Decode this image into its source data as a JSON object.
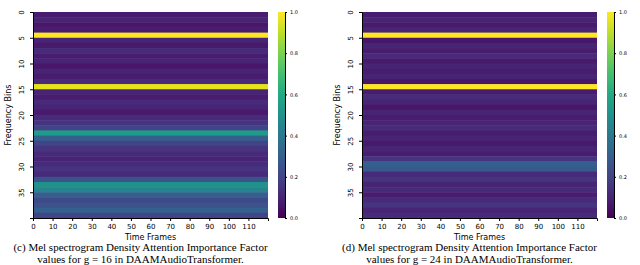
{
  "chart_data": [
    {
      "type": "heatmap",
      "xlabel": "Time Frames",
      "ylabel": "Frequency Bins",
      "caption": [
        "(c) Mel spectrogram Density Attention Importance Factor",
        "values for g = 16 in DAAMAudioTransformer."
      ],
      "xlim": [
        0,
        120
      ],
      "xticks": [
        0,
        10,
        20,
        30,
        40,
        50,
        60,
        70,
        80,
        90,
        100,
        110
      ],
      "ylim": [
        0,
        40
      ],
      "yticks": [
        0,
        5,
        10,
        15,
        20,
        25,
        30,
        35
      ],
      "cells": [
        0.08,
        0.1,
        0.06,
        0.08,
        1.0,
        0.1,
        0.07,
        0.12,
        0.08,
        0.1,
        0.06,
        0.1,
        0.08,
        0.12,
        0.96,
        0.1,
        0.08,
        0.12,
        0.1,
        0.07,
        0.12,
        0.15,
        0.2,
        0.55,
        0.3,
        0.2,
        0.15,
        0.12,
        0.1,
        0.12,
        0.15,
        0.12,
        0.25,
        0.5,
        0.45,
        0.3,
        0.22,
        0.25,
        0.3,
        0.2
      ],
      "colorbar": {
        "range": [
          0,
          1
        ],
        "ticks": [
          {
            "value": 0,
            "label": "0.0"
          },
          {
            "value": 0.2,
            "label": "0.2"
          },
          {
            "value": 0.4,
            "label": "0.4"
          },
          {
            "value": 0.6,
            "label": "0.6"
          },
          {
            "value": 0.8,
            "label": "0.8"
          },
          {
            "value": 1,
            "label": "1.0"
          }
        ]
      }
    },
    {
      "type": "heatmap",
      "xlabel": "Time Frames",
      "ylabel": "Frequency Bins",
      "caption": [
        "(d) Mel spectrogram Density Attention Importance Factor",
        "values for g = 24 in DAAMAudioTransformer."
      ],
      "xlim": [
        0,
        120
      ],
      "xticks": [
        0,
        10,
        20,
        30,
        40,
        50,
        60,
        70,
        80,
        90,
        100,
        110
      ],
      "ylim": [
        0,
        40
      ],
      "yticks": [
        0,
        5,
        10,
        15,
        20,
        25,
        30,
        35
      ],
      "cells": [
        0.08,
        0.1,
        0.07,
        0.1,
        1.0,
        0.06,
        0.1,
        0.08,
        0.12,
        0.07,
        0.1,
        0.08,
        0.1,
        0.06,
        1.0,
        0.08,
        0.12,
        0.1,
        0.06,
        0.1,
        0.08,
        0.1,
        0.12,
        0.08,
        0.1,
        0.07,
        0.1,
        0.08,
        0.15,
        0.3,
        0.28,
        0.12,
        0.15,
        0.1,
        0.12,
        0.08,
        0.12,
        0.15,
        0.1,
        0.12
      ],
      "colorbar": {
        "range": [
          0,
          1
        ],
        "ticks": [
          {
            "value": 0,
            "label": "0.0"
          },
          {
            "value": 0.2,
            "label": "0.2"
          },
          {
            "value": 0.4,
            "label": "0.4"
          },
          {
            "value": 0.6,
            "label": "0.6"
          },
          {
            "value": 0.8,
            "label": "0.8"
          },
          {
            "value": 1,
            "label": "1.0"
          }
        ]
      }
    }
  ]
}
